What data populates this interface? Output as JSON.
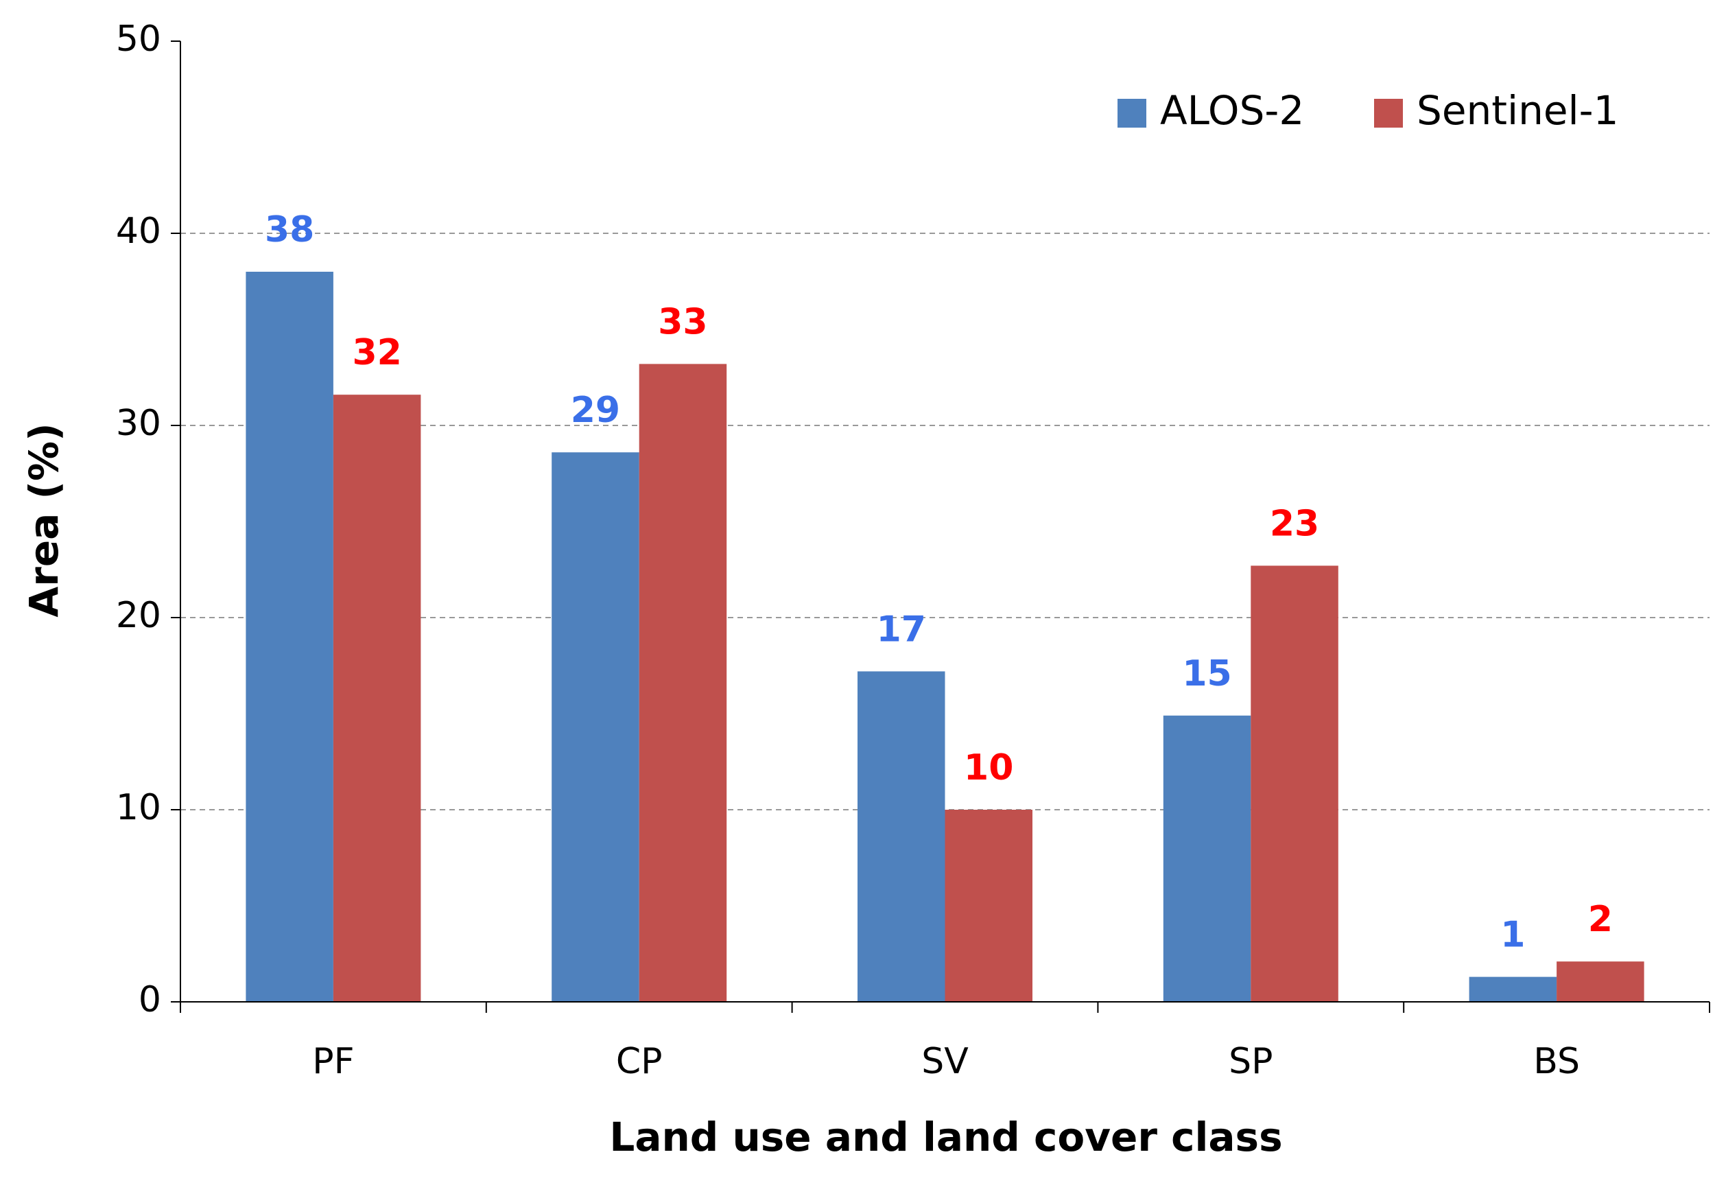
{
  "chart_data": {
    "type": "bar",
    "x_label": "Land use and land cover class",
    "y_label": "Area (%)",
    "categories": [
      "PF",
      "CP",
      "SV",
      "SP",
      "BS"
    ],
    "series": [
      {
        "name": "ALOS-2",
        "color": "#4f81bd",
        "label_color": "#3a6fe8",
        "values": [
          38.0,
          28.6,
          17.2,
          14.9,
          1.3
        ],
        "value_labels": [
          "38",
          "29",
          "17",
          "15",
          "1"
        ]
      },
      {
        "name": "Sentinel-1",
        "color": "#c0504d",
        "label_color": "#ff0000",
        "values": [
          31.6,
          33.2,
          10.0,
          22.7,
          2.1
        ],
        "value_labels": [
          "32",
          "33",
          "10",
          "23",
          "2"
        ]
      }
    ],
    "ylim": [
      0,
      50
    ],
    "yticks": [
      0,
      10,
      20,
      30,
      40,
      50
    ],
    "grid": true,
    "legend": "top-right"
  }
}
